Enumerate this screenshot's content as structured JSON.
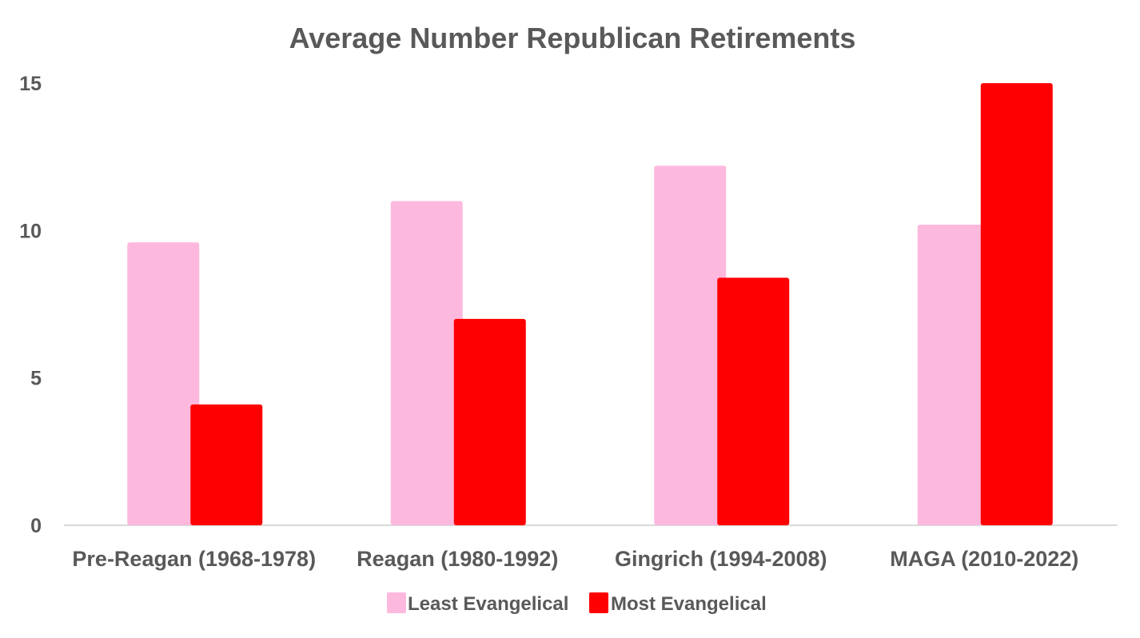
{
  "chart_data": {
    "type": "bar",
    "title": "Average Number Republican Retirements",
    "xlabel": "",
    "ylabel": "",
    "categories": [
      "Pre-Reagan (1968-1978)",
      "Reagan (1980-1992)",
      "Gingrich (1994-2008)",
      "MAGA (2010-2022)"
    ],
    "series": [
      {
        "name": "Least Evangelical",
        "color": "#FDB9DD",
        "values": [
          9.6,
          11.0,
          12.2,
          10.2
        ]
      },
      {
        "name": "Most Evangelical",
        "color": "#FF0000",
        "values": [
          4.1,
          7.0,
          8.4,
          15.0
        ]
      }
    ],
    "ylim": [
      0,
      15
    ],
    "yticks": [
      "0",
      "5",
      "10",
      "15"
    ],
    "ytick_values": [
      0,
      5,
      10,
      15
    ],
    "grid": false,
    "legend_position": "bottom"
  }
}
